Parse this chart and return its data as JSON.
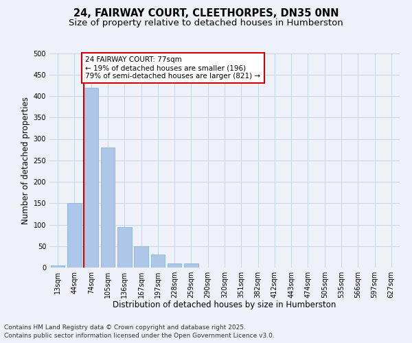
{
  "title_line1": "24, FAIRWAY COURT, CLEETHORPES, DN35 0NN",
  "title_line2": "Size of property relative to detached houses in Humberston",
  "xlabel": "Distribution of detached houses by size in Humberston",
  "ylabel": "Number of detached properties",
  "bar_color": "#aec6e8",
  "bar_edge_color": "#7bafd4",
  "grid_color": "#c8d4e4",
  "background_color": "#eef2f8",
  "categories": [
    "13sqm",
    "44sqm",
    "74sqm",
    "105sqm",
    "136sqm",
    "167sqm",
    "197sqm",
    "228sqm",
    "259sqm",
    "290sqm",
    "320sqm",
    "351sqm",
    "382sqm",
    "412sqm",
    "443sqm",
    "474sqm",
    "505sqm",
    "535sqm",
    "566sqm",
    "597sqm",
    "627sqm"
  ],
  "values": [
    5,
    150,
    420,
    280,
    95,
    50,
    30,
    10,
    10,
    0,
    0,
    0,
    0,
    0,
    0,
    0,
    0,
    0,
    0,
    0,
    0
  ],
  "property_bin_index": 2,
  "annotation_text": "24 FAIRWAY COURT: 77sqm\n← 19% of detached houses are smaller (196)\n79% of semi-detached houses are larger (821) →",
  "annotation_box_color": "white",
  "annotation_box_edge": "#cc0000",
  "red_line_color": "#cc0000",
  "ylim": [
    0,
    500
  ],
  "yticks": [
    0,
    50,
    100,
    150,
    200,
    250,
    300,
    350,
    400,
    450,
    500
  ],
  "footnote_line1": "Contains HM Land Registry data © Crown copyright and database right 2025.",
  "footnote_line2": "Contains public sector information licensed under the Open Government Licence v3.0.",
  "title_fontsize": 10.5,
  "subtitle_fontsize": 9.5,
  "axis_label_fontsize": 8.5,
  "tick_fontsize": 7,
  "annotation_fontsize": 7.5,
  "footnote_fontsize": 6.5
}
